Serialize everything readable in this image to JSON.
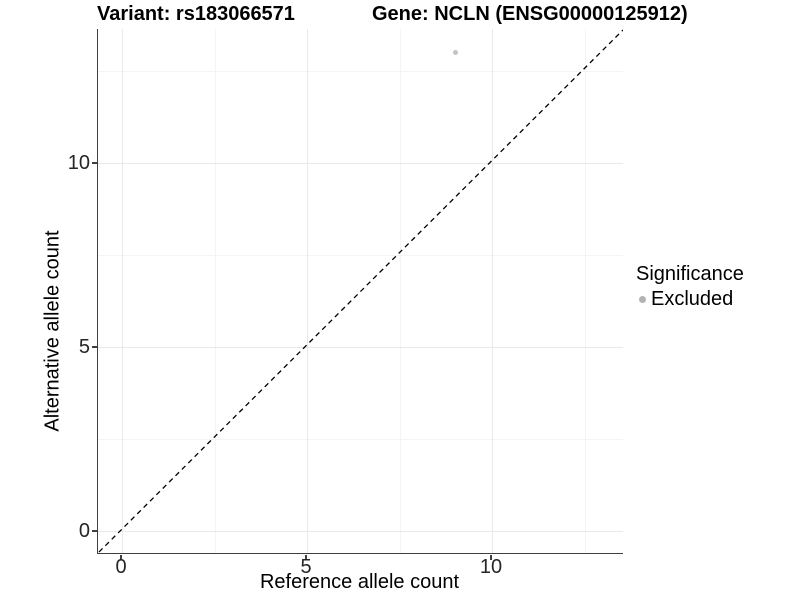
{
  "titles": {
    "variant": "Variant: rs183066571",
    "gene": "Gene: NCLN (ENSG00000125912)"
  },
  "axes": {
    "x": {
      "label": "Reference allele count",
      "ticks": [
        0,
        5,
        10
      ]
    },
    "y": {
      "label": "Alternative allele count",
      "ticks": [
        0,
        5,
        10
      ]
    }
  },
  "legend": {
    "title": "Significance",
    "items": [
      {
        "label": "Excluded",
        "color": "#bebebe"
      }
    ]
  },
  "colors": {
    "point": "#c3c3c3",
    "legend_dot": "#b2b2b2",
    "axis_line": "#3f3f3f",
    "major_grid": "#e9e9e9",
    "minor_grid": "#f4f4f4",
    "dashed_line": "#000000"
  },
  "chart_data": {
    "type": "scatter",
    "title": "Variant: rs183066571 | Gene: NCLN (ENSG00000125912)",
    "xlabel": "Reference allele count",
    "ylabel": "Alternative allele count",
    "xlim": [
      -0.65,
      13.65
    ],
    "ylim": [
      -0.65,
      13.65
    ],
    "x_ticks": [
      0,
      5,
      10
    ],
    "y_ticks": [
      0,
      5,
      10
    ],
    "x_major_gridlines": [
      0,
      5,
      10
    ],
    "x_minor_gridlines": [
      2.5,
      7.5,
      12.5
    ],
    "y_major_gridlines": [
      0,
      5,
      10
    ],
    "y_minor_gridlines": [
      2.5,
      7.5,
      12.5
    ],
    "grid": "on (very light gray, major + minor)",
    "legend_position": "right",
    "series": [
      {
        "name": "Excluded",
        "color": "#c3c3c3",
        "points": [
          {
            "x": 9,
            "y": 13
          }
        ]
      }
    ],
    "reference_line": {
      "type": "identity y=x",
      "style": "dashed",
      "color": "#000000"
    }
  }
}
